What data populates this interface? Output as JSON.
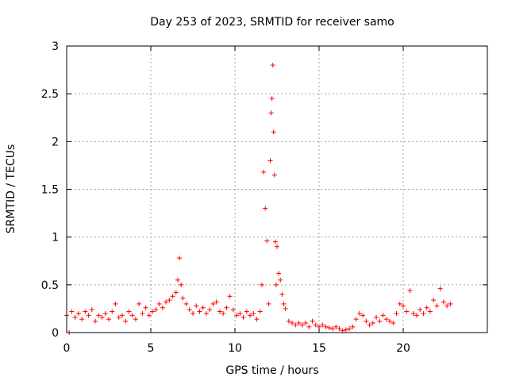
{
  "chart_data": {
    "type": "scatter",
    "title": "Day 253 of 2023, SRMTID for receiver samo",
    "xlabel": "GPS time / hours",
    "ylabel": "SRMTID / TECUs",
    "xlim": [
      0,
      25
    ],
    "ylim": [
      0,
      3
    ],
    "xticks": [
      0,
      5,
      10,
      15,
      20
    ],
    "xtick_labels": [
      "0",
      "5",
      "10",
      "15",
      "20"
    ],
    "yticks": [
      0,
      0.5,
      1,
      1.5,
      2,
      2.5,
      3
    ],
    "ytick_labels": [
      "0",
      "0.5",
      "1",
      "1.5",
      "2",
      "2.5",
      "3"
    ],
    "grid": true,
    "marker": "+",
    "series": [
      {
        "name": "SRMTID",
        "color": "#ff0000",
        "x": [
          0.0,
          0.15,
          0.3,
          0.5,
          0.7,
          0.9,
          1.1,
          1.3,
          1.5,
          1.7,
          1.9,
          2.1,
          2.3,
          2.5,
          2.7,
          2.9,
          3.1,
          3.3,
          3.5,
          3.7,
          3.9,
          4.1,
          4.3,
          4.5,
          4.7,
          4.9,
          5.1,
          5.3,
          5.5,
          5.7,
          5.9,
          6.1,
          6.3,
          6.5,
          6.6,
          6.7,
          6.8,
          6.9,
          7.1,
          7.3,
          7.5,
          7.7,
          7.9,
          8.1,
          8.3,
          8.5,
          8.7,
          8.9,
          9.1,
          9.3,
          9.5,
          9.7,
          9.9,
          10.1,
          10.3,
          10.5,
          10.7,
          10.9,
          11.1,
          11.3,
          11.5,
          11.6,
          11.7,
          11.8,
          11.9,
          12.0,
          12.1,
          12.15,
          12.2,
          12.25,
          12.3,
          12.35,
          12.4,
          12.45,
          12.5,
          12.6,
          12.7,
          12.8,
          12.9,
          13.0,
          13.2,
          13.4,
          13.6,
          13.8,
          14.0,
          14.2,
          14.4,
          14.6,
          14.8,
          15.0,
          15.2,
          15.4,
          15.6,
          15.8,
          16.0,
          16.2,
          16.4,
          16.6,
          16.8,
          17.0,
          17.2,
          17.4,
          17.6,
          17.8,
          18.0,
          18.2,
          18.4,
          18.6,
          18.8,
          19.0,
          19.2,
          19.4,
          19.6,
          19.8,
          20.0,
          20.2,
          20.4,
          20.6,
          20.8,
          21.0,
          21.2,
          21.4,
          21.6,
          21.8,
          22.0,
          22.2,
          22.4,
          22.6,
          22.8
        ],
        "y": [
          0.18,
          0.0,
          0.22,
          0.16,
          0.2,
          0.14,
          0.22,
          0.18,
          0.24,
          0.12,
          0.18,
          0.16,
          0.2,
          0.14,
          0.22,
          0.3,
          0.16,
          0.18,
          0.12,
          0.22,
          0.18,
          0.14,
          0.3,
          0.2,
          0.26,
          0.18,
          0.22,
          0.24,
          0.3,
          0.26,
          0.32,
          0.34,
          0.38,
          0.42,
          0.55,
          0.78,
          0.5,
          0.36,
          0.3,
          0.24,
          0.2,
          0.28,
          0.22,
          0.26,
          0.2,
          0.24,
          0.3,
          0.32,
          0.22,
          0.2,
          0.26,
          0.38,
          0.24,
          0.18,
          0.2,
          0.16,
          0.22,
          0.18,
          0.2,
          0.14,
          0.22,
          0.5,
          1.68,
          1.3,
          0.96,
          0.3,
          1.8,
          2.3,
          2.45,
          2.8,
          2.1,
          1.65,
          0.95,
          0.5,
          0.9,
          0.62,
          0.55,
          0.4,
          0.3,
          0.25,
          0.12,
          0.1,
          0.08,
          0.1,
          0.08,
          0.1,
          0.06,
          0.12,
          0.08,
          0.06,
          0.08,
          0.06,
          0.05,
          0.04,
          0.06,
          0.04,
          0.02,
          0.03,
          0.04,
          0.06,
          0.14,
          0.2,
          0.18,
          0.12,
          0.08,
          0.1,
          0.16,
          0.12,
          0.18,
          0.14,
          0.12,
          0.1,
          0.2,
          0.3,
          0.28,
          0.22,
          0.44,
          0.2,
          0.18,
          0.24,
          0.2,
          0.26,
          0.22,
          0.34,
          0.28,
          0.46,
          0.32,
          0.28,
          0.3
        ]
      }
    ]
  }
}
